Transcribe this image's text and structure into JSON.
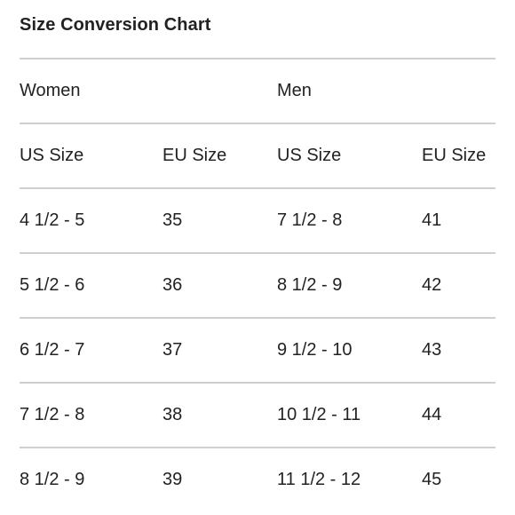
{
  "title": "Size Conversion Chart",
  "groups": {
    "women": "Women",
    "men": "Men"
  },
  "columns": [
    "US Size",
    "EU Size",
    "US Size",
    "EU Size"
  ],
  "rows": [
    [
      "4 1/2 - 5",
      "35",
      "7 1/2 - 8",
      "41"
    ],
    [
      "5 1/2 - 6",
      "36",
      "8 1/2 - 9",
      "42"
    ],
    [
      "6 1/2 - 7",
      "37",
      "9 1/2 - 10",
      "43"
    ],
    [
      "7 1/2 - 8",
      "38",
      "10 1/2 - 11",
      "44"
    ],
    [
      "8 1/2 - 9",
      "39",
      "11 1/2 - 12",
      "45"
    ]
  ]
}
